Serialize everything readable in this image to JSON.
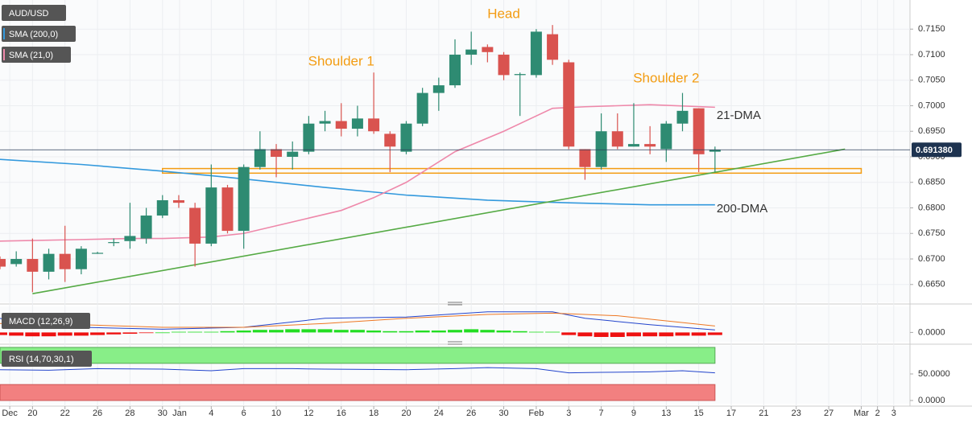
{
  "chart_data": [
    {
      "type": "candlestick",
      "symbol": "AUD/USD",
      "x": [
        0,
        1,
        2,
        3,
        4,
        5,
        6,
        7,
        8,
        9,
        10,
        11,
        12,
        13,
        14,
        15,
        16,
        17,
        18,
        19,
        20,
        21,
        22,
        23,
        24,
        25,
        26,
        27,
        28,
        29,
        30,
        31,
        32,
        33,
        34,
        35,
        36,
        37,
        38,
        39,
        40,
        41,
        42,
        43,
        44
      ],
      "open": [
        0.67,
        0.669,
        0.67,
        0.6675,
        0.671,
        0.668,
        0.6712,
        0.6733,
        0.6735,
        0.674,
        0.6785,
        0.6815,
        0.68,
        0.673,
        0.684,
        0.6755,
        0.688,
        0.6915,
        0.69,
        0.691,
        0.6965,
        0.697,
        0.6955,
        0.6975,
        0.6945,
        0.691,
        0.6965,
        0.7025,
        0.704,
        0.71,
        0.7115,
        0.71,
        0.706,
        0.706,
        0.714,
        0.7085,
        0.6915,
        0.688,
        0.695,
        0.692,
        0.6925,
        0.6915,
        0.6965,
        0.6995,
        0.691
      ],
      "high": [
        0.6705,
        0.6715,
        0.674,
        0.672,
        0.6765,
        0.6725,
        0.6714,
        0.674,
        0.681,
        0.68,
        0.6825,
        0.6825,
        0.681,
        0.6885,
        0.6845,
        0.6885,
        0.695,
        0.6925,
        0.693,
        0.698,
        0.699,
        0.7005,
        0.7,
        0.7065,
        0.695,
        0.697,
        0.7035,
        0.7055,
        0.713,
        0.7145,
        0.712,
        0.7105,
        0.7065,
        0.715,
        0.7158,
        0.709,
        0.6915,
        0.6985,
        0.6985,
        0.7005,
        0.696,
        0.697,
        0.7025,
        0.6995,
        0.692
      ],
      "low": [
        0.668,
        0.6685,
        0.6635,
        0.666,
        0.6655,
        0.667,
        0.671,
        0.6725,
        0.672,
        0.673,
        0.678,
        0.68,
        0.6685,
        0.6725,
        0.675,
        0.672,
        0.6875,
        0.686,
        0.6875,
        0.6905,
        0.695,
        0.694,
        0.694,
        0.6945,
        0.687,
        0.6905,
        0.696,
        0.699,
        0.7035,
        0.708,
        0.7085,
        0.705,
        0.698,
        0.7055,
        0.708,
        0.6915,
        0.6855,
        0.6875,
        0.6915,
        0.692,
        0.6905,
        0.689,
        0.695,
        0.687,
        0.687
      ],
      "close": [
        0.6685,
        0.67,
        0.6675,
        0.671,
        0.668,
        0.672,
        0.6712,
        0.6733,
        0.6745,
        0.6785,
        0.6815,
        0.681,
        0.673,
        0.684,
        0.6755,
        0.688,
        0.6915,
        0.69,
        0.691,
        0.6965,
        0.697,
        0.6955,
        0.6975,
        0.695,
        0.692,
        0.6965,
        0.7025,
        0.704,
        0.71,
        0.711,
        0.7105,
        0.706,
        0.7062,
        0.7145,
        0.709,
        0.692,
        0.688,
        0.695,
        0.692,
        0.6925,
        0.692,
        0.6965,
        0.699,
        0.6905,
        0.6914
      ],
      "up_color": "#2e8b72",
      "down_color": "#d9534f",
      "series": [
        {
          "name": "SMA (200,0)",
          "label": "200-DMA",
          "color": "#3399dd",
          "x": [
            0,
            5,
            10,
            14,
            20,
            25,
            30,
            35,
            40,
            44
          ],
          "values": [
            0.6895,
            0.6885,
            0.6872,
            0.686,
            0.684,
            0.6825,
            0.6815,
            0.681,
            0.6806,
            0.6806
          ]
        },
        {
          "name": "SMA (21,0)",
          "label": "21-DMA",
          "color": "#ee88aa",
          "x": [
            0,
            5,
            8,
            10,
            13,
            15,
            17,
            19,
            21,
            23,
            25,
            28,
            31,
            33,
            34,
            36,
            40,
            44
          ],
          "values": [
            0.6735,
            0.6738,
            0.674,
            0.674,
            0.6743,
            0.675,
            0.6765,
            0.678,
            0.6795,
            0.682,
            0.685,
            0.691,
            0.695,
            0.698,
            0.6995,
            0.6998,
            0.7002,
            0.6997
          ]
        }
      ],
      "trendline": {
        "color": "#55aa44",
        "x": [
          2,
          52
        ],
        "values": [
          0.6632,
          0.6915
        ]
      },
      "support_zone": {
        "color": "#f39c12",
        "x": [
          10,
          53
        ],
        "values": [
          0.6868,
          0.6877
        ]
      },
      "current_price": {
        "value": 0.69138,
        "label": "0.691380"
      },
      "annotations": [
        "Head",
        "Shoulder 1",
        "Shoulder 2"
      ],
      "xlim": [
        0,
        56
      ],
      "ylim": [
        0.6615,
        0.7207
      ],
      "grid": true,
      "yticks": [
        {
          "value": 0.715,
          "label": "0.7150"
        },
        {
          "value": 0.71,
          "label": "0.7100"
        },
        {
          "value": 0.705,
          "label": "0.7050"
        },
        {
          "value": 0.7,
          "label": "0.7000"
        },
        {
          "value": 0.695,
          "label": "0.6950"
        },
        {
          "value": 0.69,
          "label": "0.6900"
        },
        {
          "value": 0.685,
          "label": "0.6850"
        },
        {
          "value": 0.68,
          "label": "0.6800"
        },
        {
          "value": 0.675,
          "label": "0.6750"
        },
        {
          "value": 0.67,
          "label": "0.6700"
        },
        {
          "value": 0.665,
          "label": "0.6650"
        }
      ],
      "xticks": [
        {
          "value": 0.6,
          "label": "Dec"
        },
        {
          "value": 2,
          "label": "20"
        },
        {
          "value": 4,
          "label": "22"
        },
        {
          "value": 6,
          "label": "26"
        },
        {
          "value": 8,
          "label": "28"
        },
        {
          "value": 10,
          "label": "30"
        },
        {
          "value": 11.05,
          "label": "Jan"
        },
        {
          "value": 13,
          "label": "4"
        },
        {
          "value": 15,
          "label": "6"
        },
        {
          "value": 17,
          "label": "10"
        },
        {
          "value": 19,
          "label": "12"
        },
        {
          "value": 21,
          "label": "16"
        },
        {
          "value": 23,
          "label": "18"
        },
        {
          "value": 25,
          "label": "20"
        },
        {
          "value": 27,
          "label": "24"
        },
        {
          "value": 29,
          "label": "26"
        },
        {
          "value": 31,
          "label": "30"
        },
        {
          "value": 33,
          "label": "Feb"
        },
        {
          "value": 35,
          "label": "3"
        },
        {
          "value": 37,
          "label": "7"
        },
        {
          "value": 39,
          "label": "9"
        },
        {
          "value": 41,
          "label": "13"
        },
        {
          "value": 43,
          "label": "15"
        },
        {
          "value": 45,
          "label": "17"
        },
        {
          "value": 47,
          "label": "21"
        },
        {
          "value": 49,
          "label": "23"
        },
        {
          "value": 51,
          "label": "27"
        },
        {
          "value": 53,
          "label": "Mar"
        },
        {
          "value": 54,
          "label": "2"
        },
        {
          "value": 55,
          "label": "3"
        }
      ]
    },
    {
      "type": "macd",
      "title": "MACD (12,26,9)",
      "histogram": [
        -0.0004,
        -0.0005,
        -0.0006,
        -0.0006,
        -0.0005,
        -0.0005,
        -0.0004,
        -0.0003,
        -0.0002,
        -0.0001,
        0.0,
        0.0001,
        0.0001,
        0.0001,
        0.0002,
        0.0003,
        0.0004,
        0.0004,
        0.0005,
        0.0005,
        0.0005,
        0.0004,
        0.0004,
        0.0003,
        0.0002,
        0.0002,
        0.0003,
        0.0003,
        0.0004,
        0.0005,
        0.0004,
        0.0003,
        0.0002,
        0.0001,
        0.0001,
        -0.0004,
        -0.0006,
        -0.0007,
        -0.0007,
        -0.0006,
        -0.0006,
        -0.0006,
        -0.0005,
        -0.0005,
        -0.0004
      ],
      "pos_color": "#22dd22",
      "neg_color": "#ee1111",
      "series": [
        {
          "name": "MACD",
          "color": "#2244cc",
          "x": [
            0,
            2,
            5,
            10,
            15,
            20,
            25,
            30,
            34,
            36,
            40,
            44
          ],
          "values": [
            0.0022,
            0.001,
            0.0008,
            0.0005,
            0.0008,
            0.0022,
            0.0024,
            0.0032,
            0.0032,
            0.0022,
            0.0012,
            0.0004
          ]
        },
        {
          "name": "Signal",
          "color": "#ee7722",
          "x": [
            0,
            5,
            10,
            15,
            20,
            25,
            30,
            34,
            38,
            44
          ],
          "values": [
            0.0014,
            0.0012,
            0.0008,
            0.0008,
            0.0014,
            0.0022,
            0.0028,
            0.003,
            0.0026,
            0.001
          ]
        }
      ],
      "ylim": [
        -0.0012,
        0.0038
      ],
      "yticks": [
        {
          "value": 0,
          "label": "0.0000"
        }
      ]
    },
    {
      "type": "rsi",
      "title": "RSI (14,70,30,1)",
      "x": [
        0,
        3,
        6,
        10,
        13,
        15,
        18,
        20,
        25,
        28,
        30,
        33,
        35,
        37,
        40,
        42,
        44
      ],
      "values": [
        58,
        57,
        60,
        59,
        56,
        60,
        60,
        59,
        58,
        60,
        62,
        60,
        52,
        53,
        54,
        56,
        52
      ],
      "color": "#2244cc",
      "overbought": 70,
      "oversold": 30,
      "ylim": [
        0,
        100
      ],
      "yticks": [
        {
          "value": 50,
          "label": "50.0000"
        },
        {
          "value": 0,
          "label": "0.0000"
        }
      ]
    }
  ]
}
